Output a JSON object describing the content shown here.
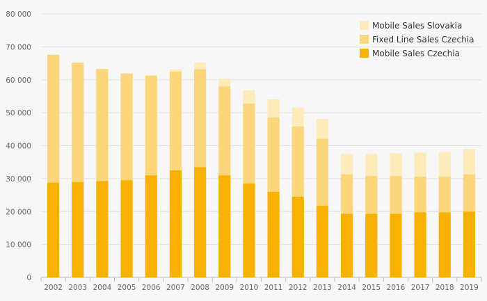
{
  "chart_data": {
    "type": "bar",
    "stacked": true,
    "categories": [
      "2002",
      "2003",
      "2004",
      "2005",
      "2006",
      "2007",
      "2008",
      "2009",
      "2010",
      "2011",
      "2012",
      "2013",
      "2014",
      "2015",
      "2016",
      "2017",
      "2018",
      "2019"
    ],
    "series": [
      {
        "name": "Mobile Sales Czechia",
        "color": "#f8b100",
        "values": [
          28800,
          29000,
          29300,
          29500,
          31000,
          32500,
          33500,
          31000,
          28500,
          26000,
          24500,
          21800,
          19300,
          19300,
          19300,
          19800,
          19800,
          20000
        ]
      },
      {
        "name": "Fixed Line Sales Czechia",
        "color": "#fcd67a",
        "values": [
          38800,
          36200,
          34000,
          32400,
          30300,
          30000,
          29700,
          27000,
          24300,
          22600,
          21300,
          20300,
          12000,
          11500,
          11500,
          10800,
          10800,
          11300
        ]
      },
      {
        "name": "Mobile Sales Slovakia",
        "color": "#feebbc",
        "values": [
          0,
          0,
          0,
          0,
          0,
          700,
          2000,
          2400,
          4000,
          5500,
          5800,
          6000,
          6200,
          6700,
          6900,
          7300,
          7500,
          7700
        ]
      }
    ],
    "ylim": [
      0,
      80000
    ],
    "yticks": [
      0,
      10000,
      20000,
      30000,
      40000,
      50000,
      60000,
      70000,
      80000
    ],
    "ytick_labels": [
      "0",
      "10 000",
      "20 000",
      "30 000",
      "40 000",
      "50 000",
      "60 000",
      "70 000",
      "80 000"
    ],
    "grid": true,
    "legend_position": "top-right",
    "legend_order": [
      "Mobile Sales Slovakia",
      "Fixed Line Sales Czechia",
      "Mobile Sales Czechia"
    ],
    "title": "",
    "xlabel": "",
    "ylabel": ""
  }
}
